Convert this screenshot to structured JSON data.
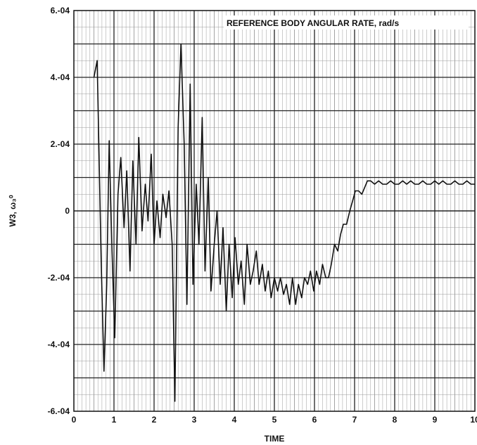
{
  "chart_data": {
    "type": "line",
    "title": "REFERENCE BODY ANGULAR RATE, rad/s",
    "xlabel": "TIME",
    "ylabel": "W3, ω₃⁰",
    "xlim": [
      0,
      10
    ],
    "ylim": [
      -0.0006,
      0.0006
    ],
    "grid": true,
    "x_ticks": [
      "0",
      "1",
      "2",
      "3",
      "4",
      "5",
      "6",
      "7",
      "8",
      "9",
      "10"
    ],
    "y_ticks": [
      {
        "value": 0.0006,
        "label": "6.-04"
      },
      {
        "value": 0.0004,
        "label": "4.-04"
      },
      {
        "value": 0.0002,
        "label": "2.-04"
      },
      {
        "value": 0,
        "label": "0"
      },
      {
        "value": -0.0002,
        "label": "-2.-04"
      },
      {
        "value": -0.0004,
        "label": "-4.-04"
      },
      {
        "value": -0.0006,
        "label": "-6.-04"
      }
    ],
    "series": [
      {
        "x": [
          0.5,
          0.58,
          0.68,
          0.75,
          0.82,
          0.88,
          0.95,
          1.02,
          1.1,
          1.17,
          1.25,
          1.32,
          1.4,
          1.47,
          1.55,
          1.62,
          1.7,
          1.78,
          1.85,
          1.93,
          2.0,
          2.07,
          2.15,
          2.22,
          2.3,
          2.37,
          2.45,
          2.52,
          2.6,
          2.67,
          2.75,
          2.82,
          2.9,
          2.97,
          3.05,
          3.12,
          3.2,
          3.27,
          3.35,
          3.42,
          3.5,
          3.57,
          3.65,
          3.72,
          3.8,
          3.87,
          3.95,
          4.02,
          4.1,
          4.17,
          4.25,
          4.32,
          4.4,
          4.47,
          4.55,
          4.62,
          4.7,
          4.77,
          4.85,
          4.92,
          5.0,
          5.08,
          5.15,
          5.23,
          5.3,
          5.38,
          5.45,
          5.53,
          5.6,
          5.68,
          5.75,
          5.83,
          5.9,
          5.98,
          6.05,
          6.13,
          6.2,
          6.28,
          6.35,
          6.42,
          6.5,
          6.58,
          6.65,
          6.72,
          6.8,
          6.88,
          6.95,
          7.02,
          7.1,
          7.18,
          7.25,
          7.32,
          7.4,
          7.5,
          7.6,
          7.7,
          7.8,
          7.9,
          8.0,
          8.1,
          8.2,
          8.3,
          8.4,
          8.5,
          8.6,
          8.7,
          8.8,
          8.9,
          9.0,
          9.1,
          9.2,
          9.3,
          9.4,
          9.5,
          9.6,
          9.7,
          9.8,
          9.9,
          10.0
        ],
        "values": [
          0.0004,
          0.00045,
          -0.00015,
          -0.00048,
          -0.00022,
          0.00021,
          -0.00012,
          -0.00038,
          5e-05,
          0.00016,
          -5e-05,
          0.00012,
          -0.00018,
          0.00015,
          -0.0001,
          0.00022,
          -6e-05,
          8e-05,
          -3e-05,
          0.00017,
          -0.0001,
          3e-05,
          -8e-05,
          5e-05,
          -2e-05,
          6e-05,
          -0.0001,
          -0.00057,
          0.00025,
          0.0005,
          0.0002,
          -0.00028,
          0.00038,
          -0.00022,
          8e-05,
          -0.0001,
          0.00028,
          -0.00018,
          0.0001,
          -0.00024,
          -0.0001,
          0.0,
          -0.00022,
          -5e-05,
          -0.0003,
          -0.0001,
          -0.00026,
          -8e-05,
          -0.00022,
          -0.00015,
          -0.00028,
          -0.0001,
          -0.00022,
          -0.00018,
          -0.00012,
          -0.00022,
          -0.00016,
          -0.00024,
          -0.00018,
          -0.00026,
          -0.0002,
          -0.00024,
          -0.0002,
          -0.00025,
          -0.00022,
          -0.00028,
          -0.0002,
          -0.00028,
          -0.00022,
          -0.00026,
          -0.0002,
          -0.00022,
          -0.00018,
          -0.00024,
          -0.00018,
          -0.00022,
          -0.00016,
          -0.0002,
          -0.0002,
          -0.00016,
          -0.0001,
          -0.00012,
          -7e-05,
          -4e-05,
          -4e-05,
          0.0,
          3e-05,
          6e-05,
          6e-05,
          5e-05,
          7e-05,
          9e-05,
          9e-05,
          8e-05,
          9e-05,
          8e-05,
          8e-05,
          9e-05,
          8e-05,
          8e-05,
          9e-05,
          8e-05,
          9e-05,
          8e-05,
          8e-05,
          9e-05,
          8e-05,
          8e-05,
          9e-05,
          8e-05,
          9e-05,
          8e-05,
          8e-05,
          9e-05,
          8e-05,
          8e-05,
          9e-05,
          8e-05,
          8e-05
        ]
      }
    ]
  }
}
